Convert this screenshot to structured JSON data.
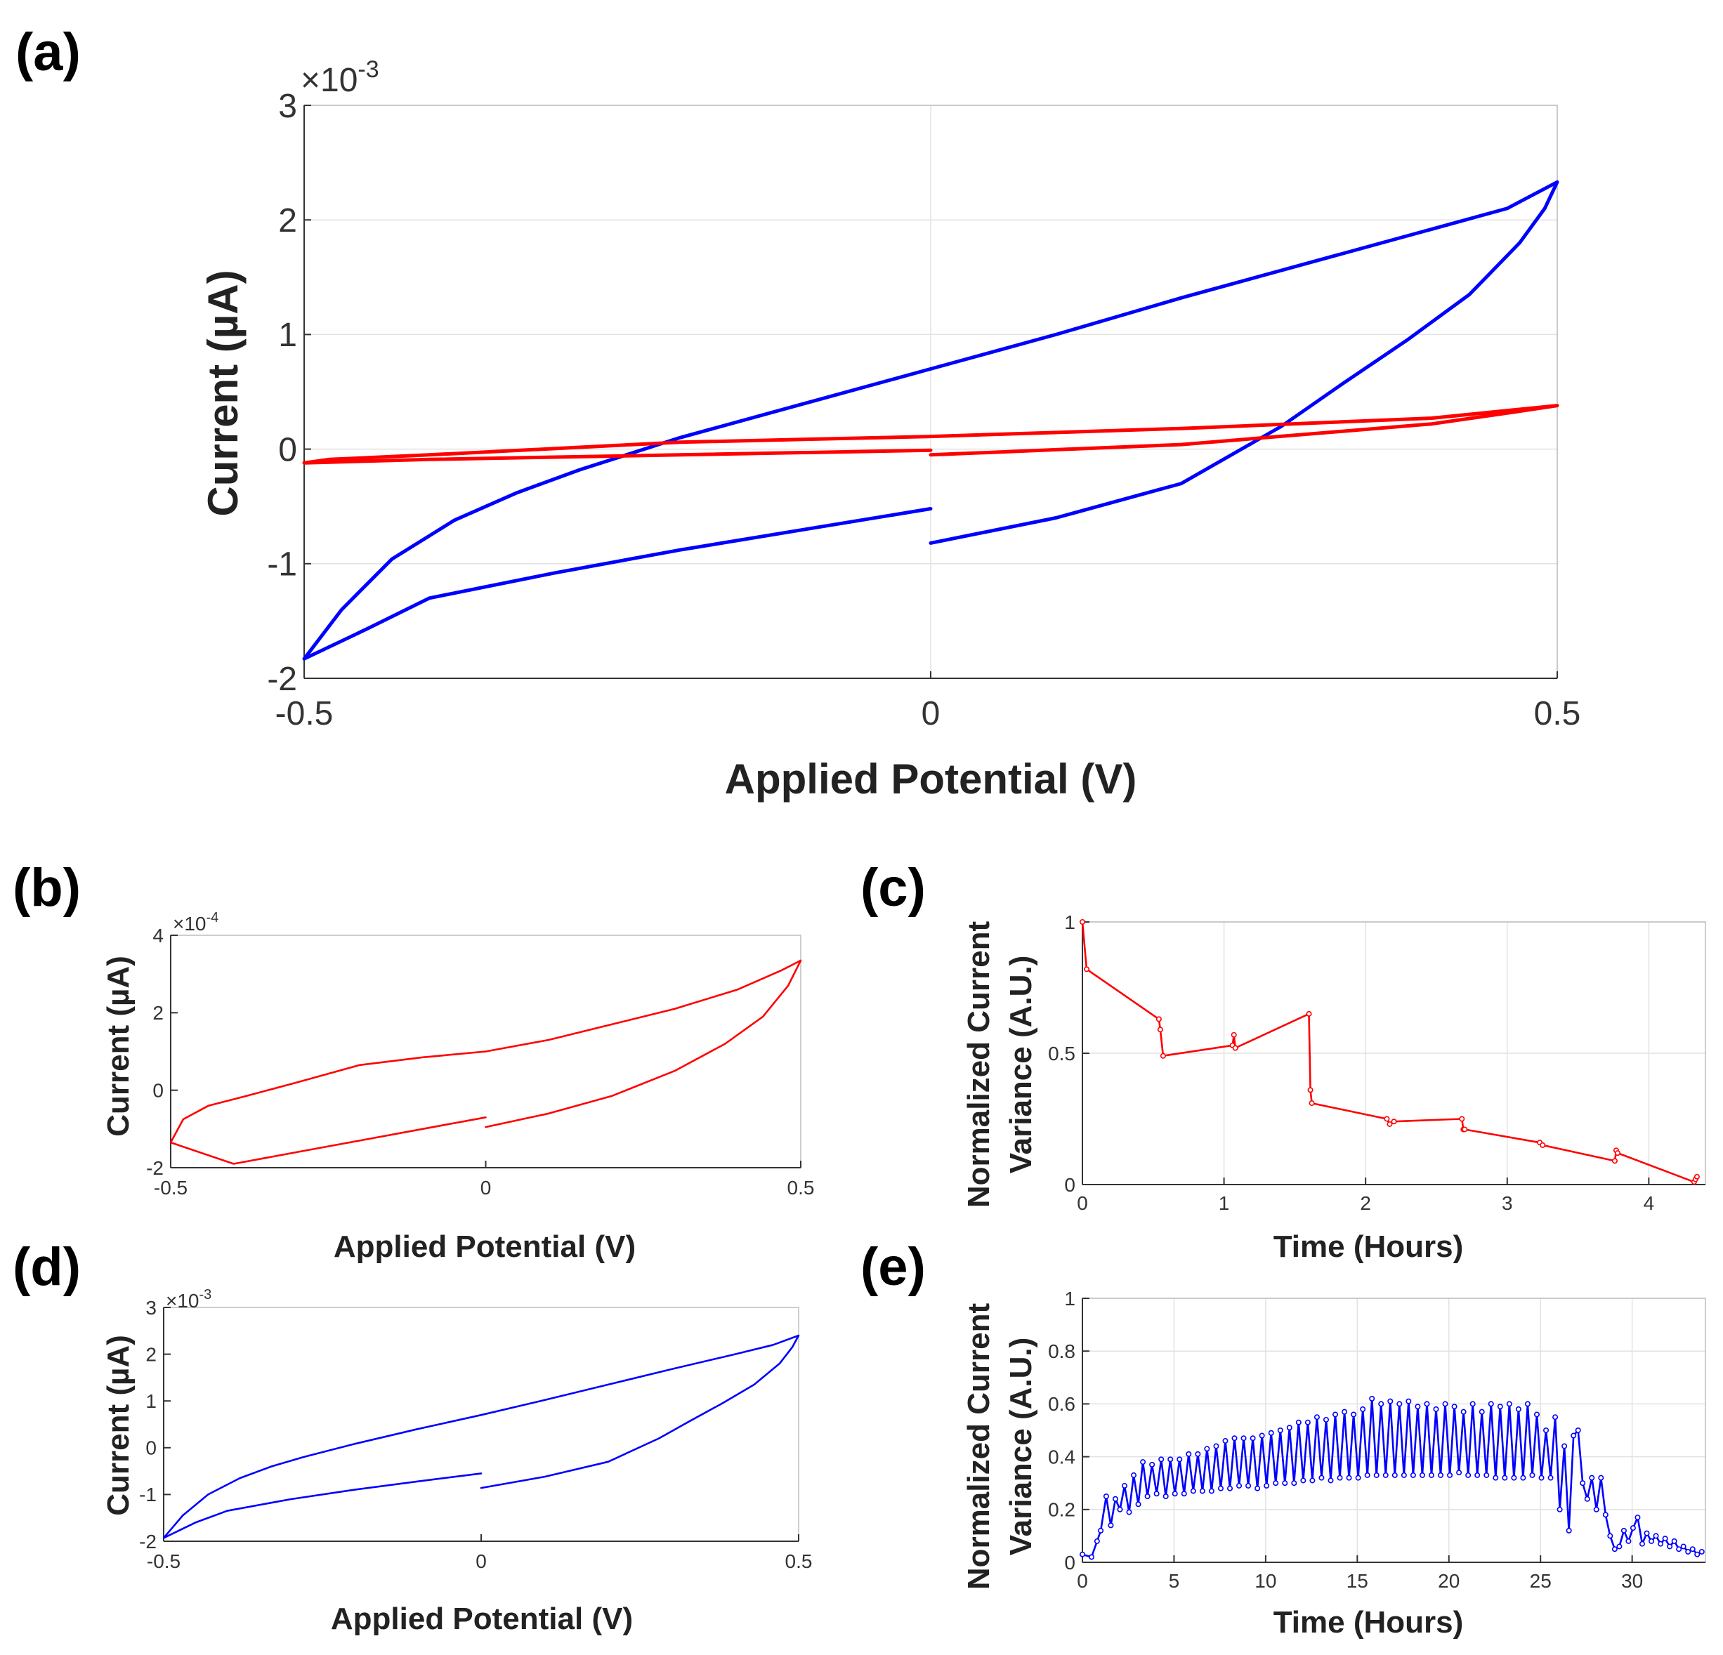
{
  "figure": {
    "colors": {
      "red": "#ff0000",
      "blue": "#0000ff",
      "grid": "#e2e2e2",
      "axis": "#333333"
    }
  },
  "chart_data": [
    {
      "id": "a",
      "panel_label": "(a)",
      "type": "line",
      "xlabel": "Applied Potential (V)",
      "ylabel": "Current (µA)",
      "xlim": [
        -0.5,
        0.5
      ],
      "ylim": [
        -2,
        3
      ],
      "y_multiplier": "×10",
      "y_multiplier_exp": "-3",
      "y_scale": 0.001,
      "xticks": [
        -0.5,
        0,
        0.5
      ],
      "yticks": [
        -2,
        -1,
        0,
        1,
        2,
        3
      ],
      "grid": true,
      "markers": false,
      "series": [
        {
          "color": "#0000ff",
          "x": [
            0,
            -0.1,
            -0.2,
            -0.3,
            -0.4,
            -0.45,
            -0.5,
            -0.47,
            -0.43,
            -0.38,
            -0.33,
            -0.28,
            -0.2,
            -0.1,
            0,
            0.1,
            0.2,
            0.3,
            0.4,
            0.46,
            0.5,
            0.49,
            0.47,
            0.43,
            0.38,
            0.33,
            0.28,
            0.2,
            0.1,
            0
          ],
          "y": [
            -0.52,
            -0.7,
            -0.88,
            -1.08,
            -1.3,
            -1.57,
            -1.83,
            -1.4,
            -0.96,
            -0.62,
            -0.38,
            -0.18,
            0.1,
            0.4,
            0.7,
            1.0,
            1.32,
            1.62,
            1.92,
            2.1,
            2.33,
            2.1,
            1.8,
            1.35,
            0.95,
            0.58,
            0.2,
            -0.3,
            -0.6,
            -0.82
          ]
        },
        {
          "color": "#ff0000",
          "x": [
            0,
            -0.2,
            -0.4,
            -0.5,
            -0.48,
            -0.4,
            -0.2,
            0,
            0.2,
            0.4,
            0.5,
            0.47,
            0.4,
            0.2,
            0
          ],
          "y": [
            -0.01,
            -0.05,
            -0.09,
            -0.12,
            -0.09,
            -0.05,
            0.06,
            0.11,
            0.18,
            0.27,
            0.38,
            0.33,
            0.22,
            0.04,
            -0.05
          ]
        }
      ]
    },
    {
      "id": "b",
      "panel_label": "(b)",
      "type": "line",
      "xlabel": "Applied Potential (V)",
      "ylabel": "Current (µA)",
      "xlim": [
        -0.5,
        0.5
      ],
      "ylim": [
        -2,
        4
      ],
      "y_multiplier": "×10",
      "y_multiplier_exp": "-4",
      "y_scale": 0.0001,
      "xticks": [
        -0.5,
        0,
        0.5
      ],
      "yticks": [
        -2,
        0,
        2,
        4
      ],
      "grid": false,
      "markers": false,
      "series": [
        {
          "color": "#ff0000",
          "x": [
            0,
            -0.1,
            -0.2,
            -0.3,
            -0.4,
            -0.5,
            -0.48,
            -0.44,
            -0.38,
            -0.3,
            -0.2,
            -0.1,
            0,
            0.1,
            0.2,
            0.3,
            0.4,
            0.47,
            0.5,
            0.48,
            0.44,
            0.38,
            0.3,
            0.2,
            0.1,
            0
          ],
          "y": [
            -0.7,
            -1.0,
            -1.3,
            -1.6,
            -1.9,
            -1.35,
            -0.75,
            -0.4,
            -0.15,
            0.2,
            0.65,
            0.85,
            1.0,
            1.3,
            1.7,
            2.1,
            2.6,
            3.1,
            3.35,
            2.7,
            1.9,
            1.2,
            0.5,
            -0.15,
            -0.6,
            -0.95
          ]
        }
      ]
    },
    {
      "id": "c",
      "panel_label": "(c)",
      "type": "line",
      "xlabel": "Time (Hours)",
      "ylabel": "Normalized Current Variance (A.U.)",
      "ylabel_lines": [
        "Normalized Current",
        "Variance (A.U.)"
      ],
      "xlim": [
        0,
        4.4
      ],
      "ylim": [
        0,
        1
      ],
      "xticks": [
        0,
        1,
        2,
        3,
        4
      ],
      "yticks": [
        0,
        0.5,
        1
      ],
      "grid": true,
      "markers": true,
      "series": [
        {
          "color": "#ff0000",
          "x": [
            0,
            0.03,
            0.54,
            0.55,
            0.57,
            1.06,
            1.07,
            1.08,
            1.6,
            1.61,
            1.62,
            2.15,
            2.17,
            2.2,
            2.68,
            2.69,
            2.7,
            3.23,
            3.25,
            3.76,
            3.77,
            3.78,
            4.32,
            4.33,
            4.34
          ],
          "y": [
            1.0,
            0.82,
            0.63,
            0.59,
            0.49,
            0.53,
            0.57,
            0.52,
            0.65,
            0.36,
            0.31,
            0.25,
            0.23,
            0.24,
            0.25,
            0.21,
            0.21,
            0.16,
            0.15,
            0.09,
            0.13,
            0.12,
            0.01,
            0.02,
            0.03
          ]
        }
      ]
    },
    {
      "id": "d",
      "panel_label": "(d)",
      "type": "line",
      "xlabel": "Applied Potential (V)",
      "ylabel": "Current (µA)",
      "xlim": [
        -0.5,
        0.5
      ],
      "ylim": [
        -2,
        3
      ],
      "y_multiplier": "×10",
      "y_multiplier_exp": "-3",
      "y_scale": 0.001,
      "xticks": [
        -0.5,
        0,
        0.5
      ],
      "yticks": [
        -2,
        -1,
        0,
        1,
        2,
        3
      ],
      "grid": false,
      "markers": false,
      "series": [
        {
          "color": "#0000ff",
          "x": [
            0,
            -0.1,
            -0.2,
            -0.3,
            -0.4,
            -0.45,
            -0.5,
            -0.47,
            -0.43,
            -0.38,
            -0.33,
            -0.28,
            -0.2,
            -0.1,
            0,
            0.1,
            0.2,
            0.3,
            0.4,
            0.46,
            0.5,
            0.49,
            0.47,
            0.43,
            0.38,
            0.33,
            0.28,
            0.2,
            0.1,
            0
          ],
          "y": [
            -0.55,
            -0.72,
            -0.9,
            -1.1,
            -1.35,
            -1.6,
            -1.93,
            -1.45,
            -1.0,
            -0.65,
            -0.4,
            -0.2,
            0.08,
            0.4,
            0.7,
            1.02,
            1.35,
            1.68,
            2.0,
            2.2,
            2.4,
            2.15,
            1.8,
            1.35,
            0.95,
            0.58,
            0.2,
            -0.3,
            -0.62,
            -0.86
          ]
        }
      ]
    },
    {
      "id": "e",
      "panel_label": "(e)",
      "type": "line",
      "xlabel": "Time (Hours)",
      "ylabel": "Normalized Current Variance (A.U.)",
      "ylabel_lines": [
        "Normalized Current",
        "Variance (A.U.)"
      ],
      "xlim": [
        0,
        34
      ],
      "ylim": [
        0,
        1
      ],
      "xticks": [
        0,
        5,
        10,
        15,
        20,
        25,
        30
      ],
      "yticks": [
        0,
        0.2,
        0.4,
        0.6,
        0.8,
        1
      ],
      "grid": true,
      "markers": true,
      "series": [
        {
          "color": "#0000ff",
          "x": [
            0,
            0.5,
            0.8,
            1.0,
            1.3,
            1.55,
            1.8,
            2.05,
            2.3,
            2.55,
            2.8,
            3.05,
            3.3,
            3.55,
            3.8,
            4.05,
            4.3,
            4.55,
            4.8,
            5.05,
            5.3,
            5.55,
            5.8,
            6.05,
            6.3,
            6.55,
            6.8,
            7.05,
            7.3,
            7.55,
            7.8,
            8.05,
            8.3,
            8.55,
            8.8,
            9.05,
            9.3,
            9.55,
            9.8,
            10.05,
            10.3,
            10.55,
            10.8,
            11.05,
            11.3,
            11.55,
            11.8,
            12.05,
            12.3,
            12.55,
            12.8,
            13.05,
            13.3,
            13.55,
            13.8,
            14.05,
            14.3,
            14.55,
            14.8,
            15.05,
            15.3,
            15.55,
            15.8,
            16.05,
            16.3,
            16.55,
            16.8,
            17.05,
            17.3,
            17.55,
            17.8,
            18.05,
            18.3,
            18.55,
            18.8,
            19.05,
            19.3,
            19.55,
            19.8,
            20.05,
            20.3,
            20.55,
            20.8,
            21.05,
            21.3,
            21.55,
            21.8,
            22.05,
            22.3,
            22.55,
            22.8,
            23.05,
            23.3,
            23.55,
            23.8,
            24.05,
            24.3,
            24.55,
            24.8,
            25.05,
            25.3,
            25.55,
            25.8,
            26.05,
            26.3,
            26.55,
            26.8,
            27.05,
            27.3,
            27.55,
            27.8,
            28.05,
            28.3,
            28.55,
            28.8,
            29.05,
            29.3,
            29.55,
            29.8,
            30.05,
            30.3,
            30.55,
            30.8,
            31.05,
            31.3,
            31.55,
            31.8,
            32.05,
            32.3,
            32.55,
            32.8,
            33.05,
            33.3,
            33.55,
            33.8
          ],
          "y": [
            0.03,
            0.02,
            0.08,
            0.12,
            0.25,
            0.14,
            0.24,
            0.2,
            0.29,
            0.19,
            0.33,
            0.22,
            0.38,
            0.25,
            0.37,
            0.26,
            0.39,
            0.25,
            0.39,
            0.26,
            0.39,
            0.26,
            0.41,
            0.27,
            0.41,
            0.27,
            0.43,
            0.27,
            0.44,
            0.28,
            0.46,
            0.28,
            0.47,
            0.29,
            0.47,
            0.29,
            0.47,
            0.28,
            0.48,
            0.29,
            0.49,
            0.3,
            0.5,
            0.3,
            0.51,
            0.3,
            0.53,
            0.31,
            0.53,
            0.31,
            0.55,
            0.32,
            0.54,
            0.31,
            0.56,
            0.32,
            0.57,
            0.32,
            0.56,
            0.32,
            0.58,
            0.33,
            0.62,
            0.33,
            0.6,
            0.33,
            0.61,
            0.33,
            0.6,
            0.33,
            0.61,
            0.33,
            0.59,
            0.33,
            0.6,
            0.33,
            0.58,
            0.33,
            0.6,
            0.33,
            0.59,
            0.34,
            0.57,
            0.33,
            0.6,
            0.33,
            0.57,
            0.33,
            0.6,
            0.32,
            0.59,
            0.32,
            0.6,
            0.32,
            0.58,
            0.32,
            0.6,
            0.33,
            0.56,
            0.32,
            0.5,
            0.32,
            0.55,
            0.2,
            0.44,
            0.12,
            0.48,
            0.5,
            0.3,
            0.24,
            0.32,
            0.2,
            0.32,
            0.18,
            0.1,
            0.05,
            0.06,
            0.12,
            0.08,
            0.13,
            0.17,
            0.07,
            0.11,
            0.08,
            0.1,
            0.07,
            0.09,
            0.06,
            0.08,
            0.05,
            0.06,
            0.04,
            0.05,
            0.03,
            0.04
          ]
        }
      ]
    }
  ]
}
